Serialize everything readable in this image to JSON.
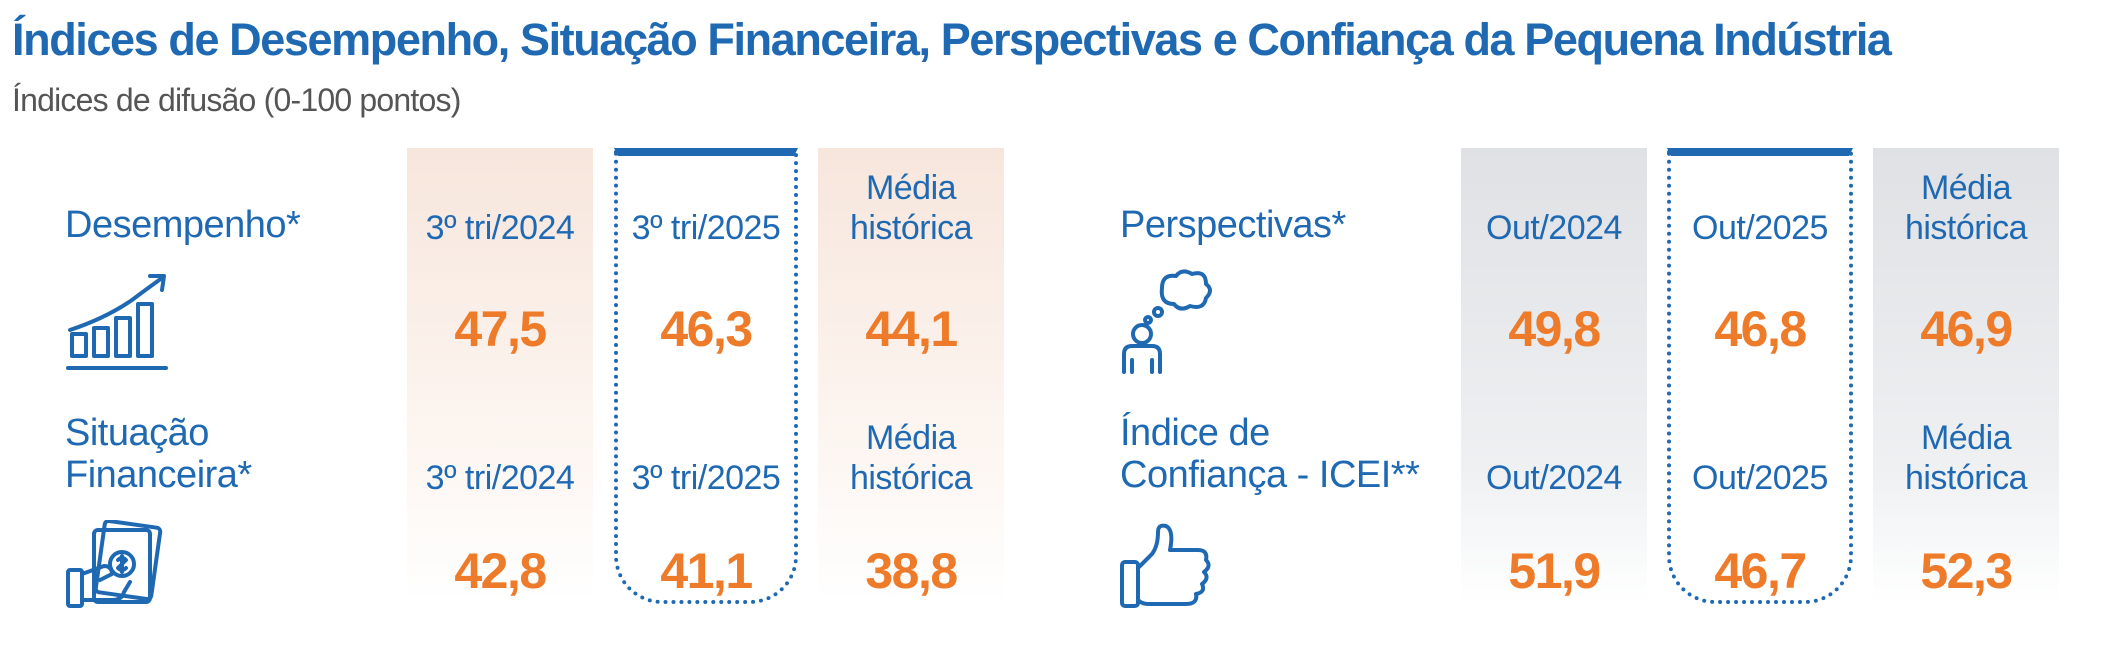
{
  "header": {
    "title": "Índices de Desempenho, Situação Financeira, Perspectivas e Confiança da Pequena Indústria",
    "subtitle": "Índices de difusão (0-100 pontos)"
  },
  "left_panel": {
    "rows": [
      {
        "label_lines": [
          "Desempenho*"
        ],
        "icon": "bar-growth-icon",
        "headers": [
          "3º tri/2024",
          "3º tri/2025",
          "Média histórica"
        ],
        "values": [
          "47,5",
          "46,3",
          "44,1"
        ]
      },
      {
        "label_lines": [
          "Situação",
          "Financeira*"
        ],
        "icon": "money-hand-icon",
        "headers": [
          "3º tri/2024",
          "3º tri/2025",
          "Média histórica"
        ],
        "values": [
          "42,8",
          "41,1",
          "38,8"
        ]
      }
    ]
  },
  "right_panel": {
    "rows": [
      {
        "label_lines": [
          "Perspectivas*"
        ],
        "icon": "thinking-person-icon",
        "headers": [
          "Out/2024",
          "Out/2025",
          "Média histórica"
        ],
        "values": [
          "49,8",
          "46,8",
          "46,9"
        ]
      },
      {
        "label_lines": [
          "Índice de",
          "Confiança - ICEI**"
        ],
        "icon": "thumbs-up-icon",
        "headers": [
          "Out/2024",
          "Out/2025",
          "Média histórica"
        ],
        "values": [
          "51,9",
          "46,7",
          "52,3"
        ]
      }
    ]
  },
  "header_lines": {
    "media": [
      "Média",
      "histórica"
    ]
  },
  "colors": {
    "blue": "#1f69b3",
    "orange": "#ee7b2a",
    "warm_column": "#f7e6dc",
    "cool_column": "#dfe1e4"
  }
}
